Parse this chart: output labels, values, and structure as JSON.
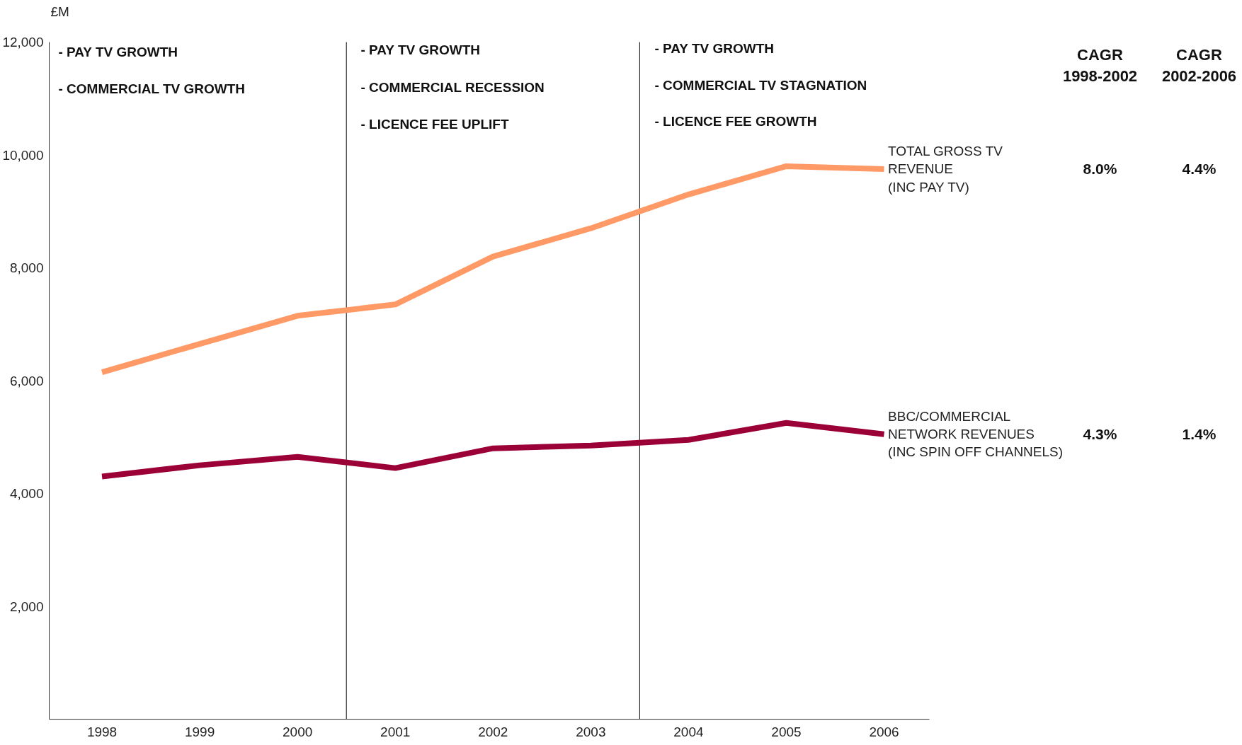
{
  "chart_data": {
    "type": "line",
    "ylabel": "£M",
    "x": [
      1998,
      1999,
      2000,
      2001,
      2002,
      2003,
      2004,
      2005,
      2006
    ],
    "xlim": [
      1997.46,
      2006.46
    ],
    "xticks": [
      1998,
      1999,
      2000,
      2001,
      2002,
      2003,
      2004,
      2005,
      2006
    ],
    "ylim": [
      0,
      12000
    ],
    "yticks": [
      {
        "value": 0,
        "label": null
      },
      {
        "value": 2000,
        "label": "2,000"
      },
      {
        "value": 4000,
        "label": "4,000"
      },
      {
        "value": 6000,
        "label": "6,000"
      },
      {
        "value": 8000,
        "label": "8,000"
      },
      {
        "value": 10000,
        "label": "10,000"
      },
      {
        "value": 12000,
        "label": "12,000"
      }
    ],
    "series": [
      {
        "name": "TOTAL GROSS TV\nREVENUE\n(INC PAY TV)",
        "color": "#ff9966",
        "values": [
          6150,
          6650,
          7150,
          7350,
          8200,
          8700,
          9300,
          9800,
          9750
        ]
      },
      {
        "name": "BBC/COMMERCIAL\nNETWORK REVENUES\n(INC SPIN OFF CHANNELS)",
        "color": "#9b0036",
        "values": [
          4300,
          4500,
          4650,
          4450,
          4800,
          4850,
          4950,
          5250,
          5050
        ]
      }
    ],
    "ref_lines": [
      {
        "axis": "x",
        "value": 2000.5,
        "color": "#000000"
      },
      {
        "axis": "x",
        "value": 2003.5,
        "color": "#000000"
      }
    ],
    "annotations": [
      "- PAY TV GROWTH",
      "- COMMERCIAL TV GROWTH",
      "-  PAY TV GROWTH",
      "- COMMERCIAL RECESSION",
      "- LICENCE FEE UPLIFT",
      "- PAY TV GROWTH",
      "- COMMERCIAL TV STAGNATION",
      "- LICENCE FEE GROWTH",
      "CAGR\n1998-2002",
      "CAGR\n2002-2006",
      "8.0%",
      "4.4%",
      "4.3%",
      "1.4%"
    ],
    "grid": false,
    "marker": "none",
    "line_style": "solid"
  }
}
